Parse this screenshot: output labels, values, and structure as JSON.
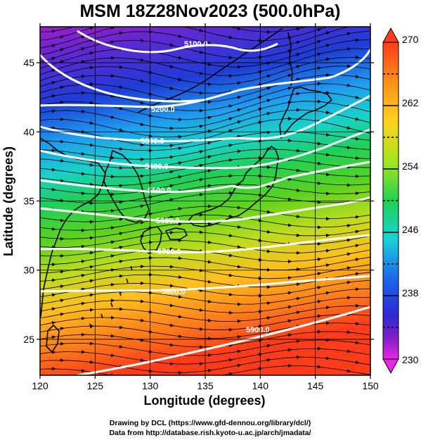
{
  "title": "MSM 18Z28Nov2023 (500.0hPa)",
  "x_axis": {
    "label": "Longitude (degrees)",
    "range": [
      120,
      150
    ],
    "ticks": [
      "120",
      "125",
      "130",
      "135",
      "140",
      "145",
      "150"
    ]
  },
  "y_axis": {
    "label": "Latitude  (degrees)",
    "range": [
      22.4,
      47.6
    ],
    "ticks": [
      "25",
      "30",
      "35",
      "40",
      "45"
    ]
  },
  "colorbar": {
    "range": [
      230,
      270
    ],
    "labels": [
      "270",
      "262",
      "254",
      "246",
      "238",
      "230"
    ],
    "colors": [
      "#ff3c19",
      "#ff8c1a",
      "#ffc81e",
      "#c8e61e",
      "#3cd21e",
      "#19c878",
      "#19d2d7",
      "#1e82f0",
      "#1e3cd2",
      "#5a28c8",
      "#a01ec8",
      "#e628e6"
    ]
  },
  "contours": {
    "labels": [
      "5100.0",
      "5200.0",
      "5300.0",
      "5400.0",
      "5500.0",
      "5600.0",
      "5700.0",
      "5800.0",
      "5900.0"
    ],
    "color": "#ffffff"
  },
  "credits": [
    "Drawing by DCL (https://www.gfd-dennou.org/library/dcl/)",
    "Data from http://database.rish.kyoto-u.ac.jp/arch/jmadata/"
  ]
}
